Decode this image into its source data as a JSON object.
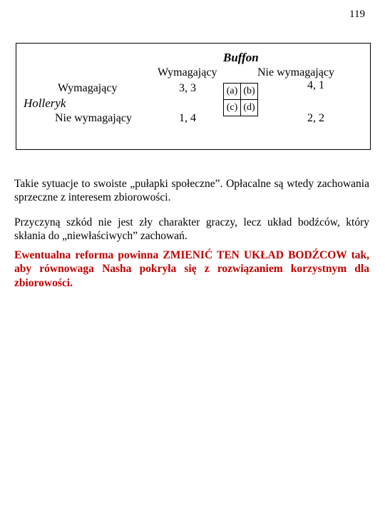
{
  "page_number": "119",
  "game_table": {
    "top_player": "Buffon",
    "left_player": "Holleryk",
    "col_labels": {
      "left": "Wymagający",
      "right": "Nie wymagający"
    },
    "row_labels": {
      "top": "Wymagający",
      "bottom": "Nie wymagający"
    },
    "payoffs": {
      "tl": "3, 3",
      "tr": "4, 1",
      "bl": "1, 4",
      "br": "2, 2"
    },
    "mini": {
      "a": "(a)",
      "b": "(b)",
      "c": "(c)",
      "d": "(d)"
    }
  },
  "paragraphs": {
    "p1": "Takie sytuacje to swoiste „pułapki społeczne”. Opłacalne są wtedy zachowania sprzeczne z interesem zbiorowości.",
    "p2": "Przyczyną szkód nie jest zły charakter graczy, lecz układ bodźców, który skłania do „niewłaściwych” zachowań.",
    "p3": "Ewentualna reforma powinna ZMIENIĆ TEN UKŁAD BODŹCOW tak, aby równowaga Nasha pokryła się z rozwiązaniem korzystnym dla zbiorowości."
  },
  "colors": {
    "text": "#000000",
    "highlight": "#c00000",
    "background": "#ffffff",
    "border": "#000000"
  },
  "typography": {
    "base_font": "Times New Roman",
    "page_number_size_pt": 15,
    "header_size_pt": 17,
    "label_size_pt": 16,
    "body_size_pt": 15.5,
    "mini_cell_size_pt": 14
  }
}
